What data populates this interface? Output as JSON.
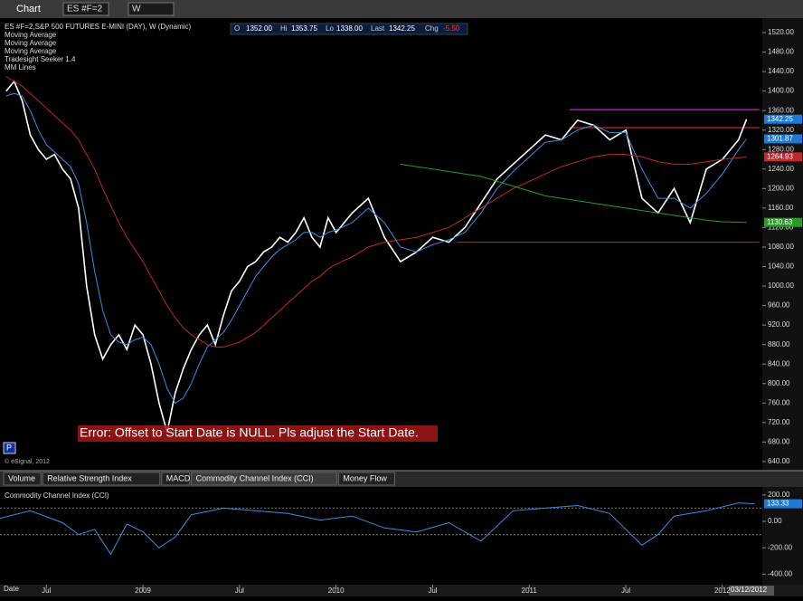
{
  "toolbar": {
    "title": "Chart",
    "symbol": "ES #F=2",
    "interval": "W"
  },
  "quote": {
    "o_label": "O",
    "o": "1352.00",
    "hi_label": "Hi",
    "hi": "1353.75",
    "lo_label": "Lo",
    "lo": "1338.00",
    "last_label": "Last",
    "last": "1342.25",
    "chg_label": "Chg",
    "chg": "-5.50"
  },
  "tabs": [
    "Volume",
    "Relative Strength Index",
    "MACD",
    "Commodity Channel Index (CCI)",
    "Money Flow"
  ],
  "date_label": "Date",
  "cursor_date": "03/12/2012",
  "chart_data": [
    {
      "type": "line",
      "title": "ES #F=2,S&P 500 FUTURES E-MINI (DAY), W (Dynamic)",
      "studies": [
        "Tradesight Seeker 1.4",
        "MM Lines"
      ],
      "error": "Error: Offset to Start Date is NULL. Pls adjust the Start Date.",
      "copyright": "© eSignal, 2012",
      "xlim": [
        -8.88,
        38.48
      ],
      "xticks": [
        {
          "value": -6,
          "label": "Jul"
        },
        {
          "value": 0,
          "label": "2009"
        },
        {
          "value": 6,
          "label": "Jul"
        },
        {
          "value": 12,
          "label": "2010"
        },
        {
          "value": 18,
          "label": "Jul"
        },
        {
          "value": 24,
          "label": "2011"
        },
        {
          "value": 30,
          "label": "Jul"
        },
        {
          "value": 36,
          "label": "2012"
        }
      ],
      "ylim": [
        625,
        1546
      ],
      "yticks": [
        {
          "value": 640,
          "label": "640.00"
        },
        {
          "value": 680,
          "label": "680.00"
        },
        {
          "value": 720,
          "label": "720.00"
        },
        {
          "value": 760,
          "label": "760.00"
        },
        {
          "value": 800,
          "label": "800.00"
        },
        {
          "value": 840,
          "label": "840.00"
        },
        {
          "value": 880,
          "label": "880.00"
        },
        {
          "value": 920,
          "label": "920.00"
        },
        {
          "value": 960,
          "label": "960.00"
        },
        {
          "value": 1000,
          "label": "1000.00"
        },
        {
          "value": 1040,
          "label": "1040.00"
        },
        {
          "value": 1080,
          "label": "1080.00"
        },
        {
          "value": 1120,
          "label": "1120.00"
        },
        {
          "value": 1160,
          "label": "1160.00"
        },
        {
          "value": 1200,
          "label": "1200.00"
        },
        {
          "value": 1240,
          "label": "1240.00"
        },
        {
          "value": 1280,
          "label": "1280.00"
        },
        {
          "value": 1320,
          "label": "1320.00"
        },
        {
          "value": 1360,
          "label": "1360.00"
        },
        {
          "value": 1400,
          "label": "1400.00"
        },
        {
          "value": 1440,
          "label": "1440.00"
        },
        {
          "value": 1480,
          "label": "1480.00"
        },
        {
          "value": 1520,
          "label": "1520.00"
        }
      ],
      "x": [
        -8.5,
        -8,
        -7.5,
        -7,
        -6.5,
        -6,
        -5.5,
        -5,
        -4.5,
        -4,
        -3.5,
        -3,
        -2.5,
        -2,
        -1.5,
        -1,
        -0.5,
        0,
        0.5,
        1,
        1.5,
        2,
        2.5,
        3,
        3.5,
        4,
        4.5,
        5,
        5.5,
        6,
        6.5,
        7,
        7.5,
        8,
        8.5,
        9,
        9.5,
        10,
        10.5,
        11,
        11.5,
        12,
        13,
        14,
        15,
        16,
        17,
        18,
        19,
        20,
        21,
        22,
        23,
        24,
        25,
        26,
        27,
        28,
        29,
        30,
        31,
        32,
        33,
        34,
        35,
        36,
        37,
        37.5
      ],
      "series": [
        {
          "color": "#ffffff",
          "values": [
            1400,
            1420,
            1380,
            1310,
            1280,
            1260,
            1270,
            1240,
            1220,
            1160,
            1000,
            900,
            850,
            880,
            900,
            870,
            920,
            900,
            840,
            760,
            700,
            780,
            830,
            870,
            900,
            920,
            880,
            940,
            990,
            1010,
            1040,
            1050,
            1070,
            1080,
            1100,
            1090,
            1110,
            1140,
            1100,
            1080,
            1140,
            1110,
            1150,
            1180,
            1100,
            1050,
            1070,
            1100,
            1090,
            1120,
            1170,
            1220,
            1250,
            1280,
            1310,
            1300,
            1340,
            1330,
            1300,
            1320,
            1180,
            1150,
            1200,
            1130,
            1240,
            1260,
            1300,
            1342.25
          ]
        },
        {
          "name": "Moving Average",
          "color": "#3a8ee6",
          "values": [
            1390,
            1395,
            1390,
            1360,
            1320,
            1290,
            1275,
            1260,
            1245,
            1210,
            1130,
            1030,
            950,
            900,
            885,
            880,
            890,
            895,
            880,
            840,
            790,
            760,
            770,
            800,
            840,
            875,
            890,
            905,
            930,
            960,
            990,
            1020,
            1040,
            1060,
            1075,
            1085,
            1095,
            1110,
            1110,
            1100,
            1110,
            1115,
            1130,
            1160,
            1130,
            1080,
            1070,
            1085,
            1095,
            1110,
            1150,
            1200,
            1235,
            1265,
            1295,
            1300,
            1320,
            1330,
            1315,
            1315,
            1240,
            1180,
            1180,
            1160,
            1190,
            1230,
            1280,
            1301.87
          ]
        },
        {
          "name": "Moving Average",
          "color": "#c0282a",
          "values": [
            1430,
            1420,
            1410,
            1395,
            1380,
            1365,
            1350,
            1335,
            1320,
            1300,
            1270,
            1240,
            1200,
            1165,
            1130,
            1100,
            1075,
            1050,
            1020,
            990,
            960,
            935,
            915,
            900,
            890,
            880,
            875,
            875,
            880,
            885,
            895,
            905,
            920,
            935,
            950,
            965,
            980,
            995,
            1010,
            1020,
            1035,
            1045,
            1060,
            1080,
            1090,
            1095,
            1100,
            1110,
            1120,
            1140,
            1160,
            1180,
            1200,
            1215,
            1230,
            1245,
            1255,
            1265,
            1270,
            1270,
            1265,
            1255,
            1250,
            1250,
            1255,
            1260,
            1263,
            1264.93
          ]
        },
        {
          "name": "Moving Average",
          "color": "#2a9a2a",
          "values": [
            null,
            null,
            null,
            null,
            null,
            null,
            null,
            null,
            null,
            null,
            null,
            null,
            null,
            null,
            null,
            null,
            null,
            null,
            null,
            null,
            null,
            null,
            null,
            null,
            null,
            null,
            null,
            null,
            null,
            null,
            null,
            null,
            null,
            null,
            null,
            null,
            null,
            null,
            null,
            null,
            null,
            null,
            null,
            null,
            null,
            1250,
            1245,
            1240,
            1235,
            1230,
            1225,
            1215,
            1205,
            1195,
            1185,
            1180,
            1175,
            1170,
            1165,
            1160,
            1155,
            1150,
            1145,
            1140,
            1135,
            1132,
            1131,
            1130.63
          ]
        }
      ],
      "levels": [
        {
          "value": 1362,
          "color": "#d020d0"
        },
        {
          "value": 1325,
          "color": "#c0282a"
        },
        {
          "value": 1090,
          "color": "#e01010"
        }
      ],
      "price_tags": [
        {
          "value": 1342.25,
          "color": "#1e78d6"
        },
        {
          "value": 1301.87,
          "color": "#1e78d6"
        },
        {
          "value": 1264.93,
          "color": "#c0282a"
        },
        {
          "value": 1130.63,
          "color": "#2a9a2a"
        }
      ]
    },
    {
      "type": "line",
      "title": "Commodity Channel Index (CCI)",
      "xlim": [
        -8.88,
        38.48
      ],
      "ylim": [
        -480,
        247
      ],
      "yticks": [
        {
          "value": 200,
          "label": "200.00"
        },
        {
          "value": 0,
          "label": "0.00"
        },
        {
          "value": -200,
          "label": "-200.00"
        },
        {
          "value": -400,
          "label": "-400.00"
        }
      ],
      "x": [
        -9,
        -7,
        -5,
        -4,
        -3,
        -2,
        -1,
        0,
        1,
        2,
        3,
        5,
        7,
        9,
        11,
        13,
        15,
        17,
        19,
        21,
        23,
        25,
        27,
        29,
        31,
        32,
        33,
        35,
        37,
        38
      ],
      "series": [
        {
          "color": "#3a8ee6",
          "values": [
            20,
            80,
            -10,
            -100,
            -60,
            -250,
            -20,
            -80,
            -200,
            -120,
            50,
            100,
            80,
            60,
            10,
            40,
            -50,
            -80,
            -10,
            -150,
            80,
            100,
            120,
            60,
            -180,
            -100,
            40,
            80,
            140,
            133.33
          ]
        }
      ],
      "levels": [
        {
          "value": 100,
          "color": "#666666"
        },
        {
          "value": -100,
          "color": "#666666"
        }
      ],
      "price_tags": [
        {
          "value": 133.33,
          "color": "#1e78d6"
        }
      ]
    }
  ]
}
